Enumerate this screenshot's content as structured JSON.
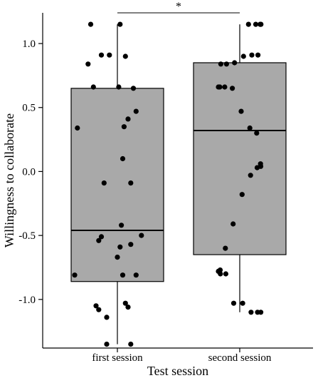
{
  "chart_data": {
    "type": "box",
    "title": "",
    "xlabel": "Test session",
    "ylabel": "Willingness to collaborate",
    "categories": [
      "first session",
      "second session"
    ],
    "ylim": [
      -1.38,
      1.24
    ],
    "yticks": [
      "1.0",
      "0.5",
      "0.0",
      "-0.5",
      "-1.0"
    ],
    "ytick_values": [
      1.0,
      0.5,
      0.0,
      -0.5,
      -1.0
    ],
    "box_fill": "#a9a9a9",
    "significance": {
      "between": [
        "first session",
        "second session"
      ],
      "label": "*"
    },
    "boxes": [
      {
        "category": "first session",
        "q1": -0.86,
        "median": -0.46,
        "q3": 0.65,
        "whisker_low": -1.35,
        "whisker_high": 1.15
      },
      {
        "category": "second session",
        "q1": -0.65,
        "median": 0.32,
        "q3": 0.85,
        "whisker_low": -1.1,
        "whisker_high": 1.15
      }
    ],
    "points": [
      {
        "category": "first session",
        "y": [
          1.15,
          1.15,
          0.91,
          0.91,
          0.9,
          0.84,
          0.66,
          0.66,
          0.65,
          0.47,
          0.41,
          0.35,
          0.34,
          0.1,
          -0.09,
          -0.09,
          -0.42,
          -0.5,
          -0.51,
          -0.54,
          -0.57,
          -0.59,
          -0.67,
          -0.81,
          -0.81,
          -0.81,
          -1.03,
          -1.05,
          -1.06,
          -1.08,
          -1.14,
          -1.35,
          -1.35
        ],
        "jitter": [
          0.02,
          -0.2,
          -0.12,
          -0.06,
          0.06,
          -0.22,
          -0.18,
          0.01,
          0.12,
          0.14,
          0.08,
          0.05,
          -0.3,
          0.04,
          -0.1,
          0.1,
          0.03,
          0.18,
          -0.12,
          -0.14,
          0.1,
          0.02,
          0.0,
          -0.32,
          0.04,
          0.14,
          0.06,
          -0.16,
          0.08,
          -0.14,
          -0.08,
          -0.08,
          0.1
        ]
      },
      {
        "category": "second session",
        "y": [
          1.15,
          1.15,
          1.15,
          1.15,
          0.91,
          0.91,
          0.9,
          0.85,
          0.84,
          0.84,
          0.66,
          0.66,
          0.66,
          0.65,
          0.47,
          0.34,
          0.3,
          0.06,
          0.04,
          0.03,
          -0.03,
          -0.18,
          -0.41,
          -0.6,
          -0.77,
          -0.78,
          -0.8,
          -0.8,
          -1.03,
          -1.03,
          -1.1,
          -1.1,
          -1.1
        ]
      }
    ]
  }
}
